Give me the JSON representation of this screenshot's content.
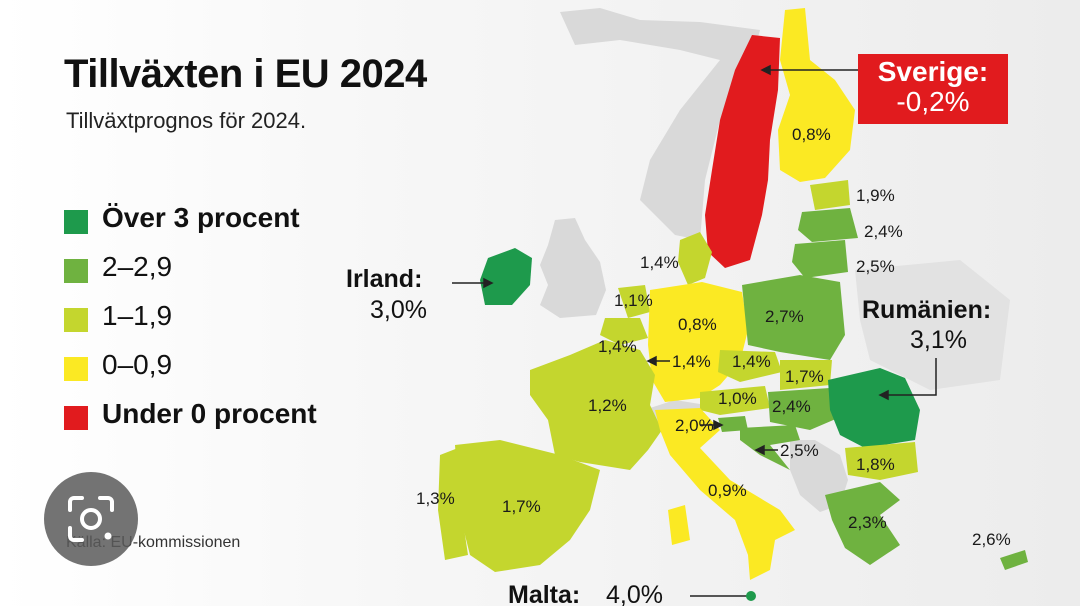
{
  "title": "Tillväxten i EU 2024",
  "subtitle": "Tillväxtprognos för 2024.",
  "source": "Källa: EU-kommissionen",
  "colors": {
    "over3": "#1e9a4c",
    "range2": "#6fb240",
    "range1": "#c4d62e",
    "range0": "#fbe923",
    "under0": "#e11b1e",
    "non_eu": "#d9d9d9"
  },
  "legend": [
    {
      "label": "Över 3 procent",
      "color": "#1e9a4c",
      "bold": true
    },
    {
      "label": "2–2,9",
      "color": "#6fb240",
      "bold": false
    },
    {
      "label": "1–1,9",
      "color": "#c4d62e",
      "bold": false
    },
    {
      "label": "0–0,9",
      "color": "#fbe923",
      "bold": false
    },
    {
      "label": "Under 0 procent",
      "color": "#e11b1e",
      "bold": true
    }
  ],
  "callouts": {
    "sverige": {
      "name": "Sverige:",
      "value": "-0,2%"
    },
    "irland": {
      "name": "Irland:",
      "value": "3,0%"
    },
    "rumanien": {
      "name": "Rumänien:",
      "value": "3,1%"
    },
    "malta": {
      "name": "Malta:",
      "value": "4,0%"
    }
  },
  "countries": {
    "finland": "0,8%",
    "estonia": "1,9%",
    "latvia": "2,4%",
    "lithuania": "2,5%",
    "denmark": "1,4%",
    "netherlands": "1,1%",
    "belgium": "1,4%",
    "germany": "0,8%",
    "luxembourg": "1,4%",
    "poland": "2,7%",
    "czechia": "1,4%",
    "slovakia": "1,7%",
    "austria": "1,0%",
    "hungary": "2,4%",
    "slovenia": "2,0%",
    "croatia": "2,5%",
    "bulgaria": "1,8%",
    "greece": "2,3%",
    "cyprus": "2,6%",
    "france": "1,2%",
    "portugal": "1,3%",
    "spain": "1,7%",
    "italy": "0,9%"
  },
  "icons": {
    "lens": "google-lens-icon"
  }
}
